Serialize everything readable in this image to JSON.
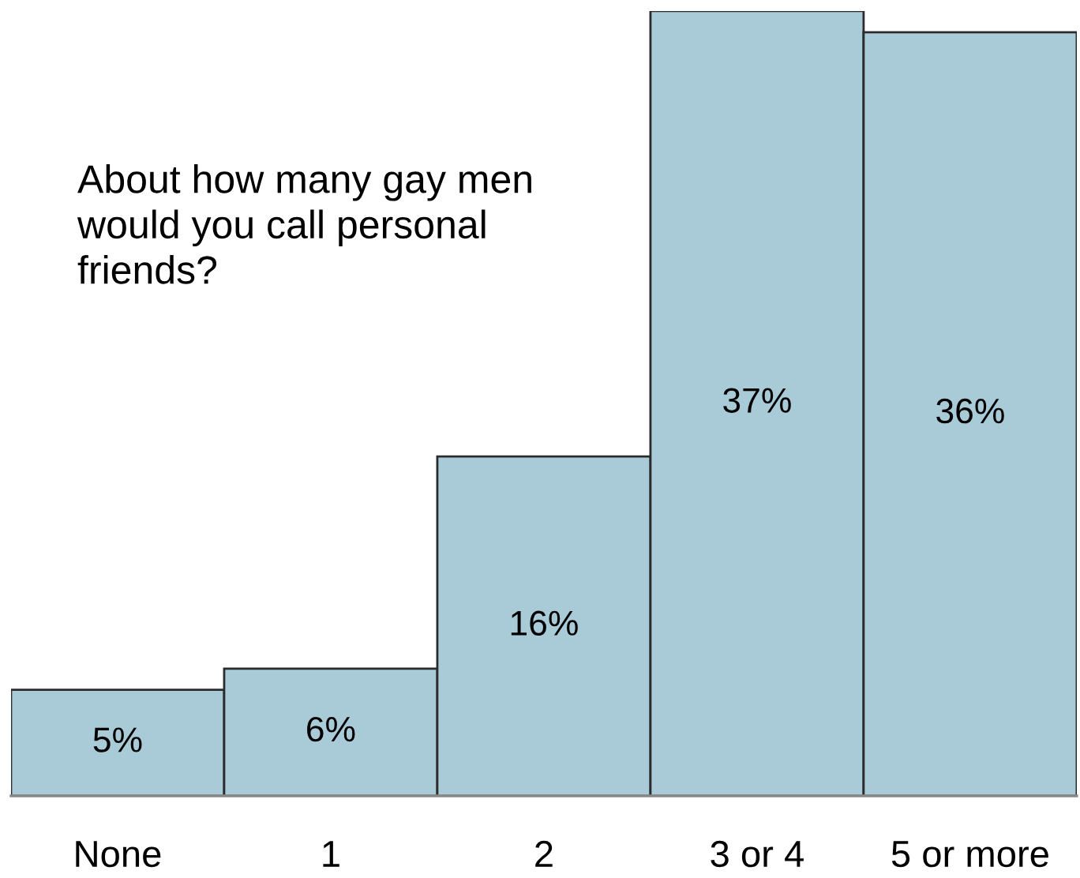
{
  "chart_data": {
    "type": "bar",
    "title": "About how many gay men would you call personal friends?",
    "categories": [
      "None",
      "1",
      "2",
      "3 or 4",
      "5 or more"
    ],
    "values": [
      5,
      6,
      16,
      37,
      36
    ],
    "value_labels": [
      "5%",
      "6%",
      "16%",
      "37%",
      "36%"
    ],
    "color": "#a8cbd7"
  }
}
